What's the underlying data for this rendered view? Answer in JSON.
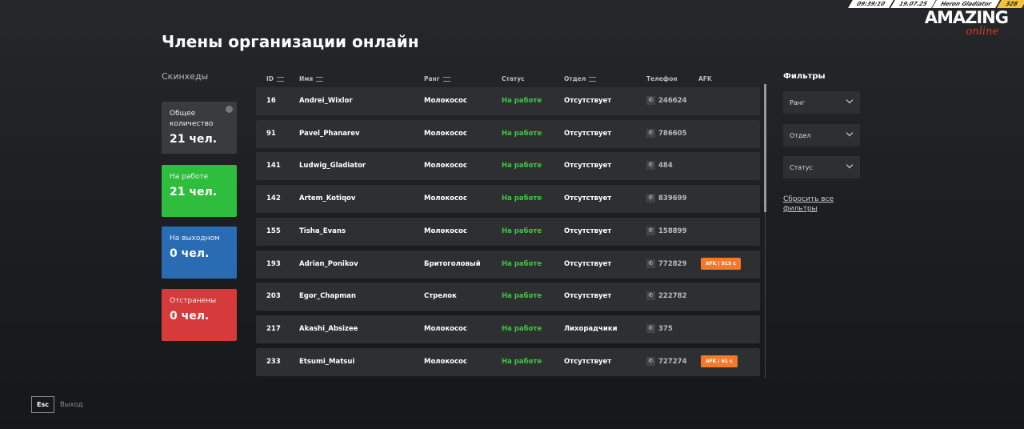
{
  "hud": {
    "time": "09:39:10",
    "date": "19.07.25",
    "player": "Heron Gladiator",
    "money": "328"
  },
  "logo": {
    "main": "AMAZING",
    "sub": "online"
  },
  "title": "Члены организации онлайн",
  "sidebar": {
    "heading": "Скинхеды",
    "cards": [
      {
        "label": "Общее количество",
        "value": "21 чел.",
        "color": "#3a3b3d"
      },
      {
        "label": "На работе",
        "value": "21 чел.",
        "color": "#2fbd3e"
      },
      {
        "label": "На выходном",
        "value": "0 чел.",
        "color": "#2a6cb3"
      },
      {
        "label": "Отстранены",
        "value": "0 чел.",
        "color": "#d63a3a"
      }
    ]
  },
  "table": {
    "headers": {
      "id": "ID",
      "name": "Имя",
      "rank": "Ранг",
      "status": "Статус",
      "dept": "Отдел",
      "phone": "Телефон",
      "afk": "AFK"
    },
    "rows": [
      {
        "id": "16",
        "name": "Andrei_Wixlor",
        "rank": "Молокосос",
        "status": "На работе",
        "dept": "Отсутствует",
        "phone": "246624",
        "afk": ""
      },
      {
        "id": "91",
        "name": "Pavel_Phanarev",
        "rank": "Молокосос",
        "status": "На работе",
        "dept": "Отсутствует",
        "phone": "786605",
        "afk": ""
      },
      {
        "id": "141",
        "name": "Ludwig_Gladiator",
        "rank": "Молокосос",
        "status": "На работе",
        "dept": "Отсутствует",
        "phone": "484",
        "afk": ""
      },
      {
        "id": "142",
        "name": "Artem_Kotiqov",
        "rank": "Молокосос",
        "status": "На работе",
        "dept": "Отсутствует",
        "phone": "839699",
        "afk": ""
      },
      {
        "id": "155",
        "name": "Tisha_Evans",
        "rank": "Молокосос",
        "status": "На работе",
        "dept": "Отсутствует",
        "phone": "158899",
        "afk": ""
      },
      {
        "id": "193",
        "name": "Adrian_Ponikov",
        "rank": "Бритоголовый",
        "status": "На работе",
        "dept": "Отсутствует",
        "phone": "772829",
        "afk": "AFK  |  915 с"
      },
      {
        "id": "203",
        "name": "Egor_Chapman",
        "rank": "Стрелок",
        "status": "На работе",
        "dept": "Отсутствует",
        "phone": "222782",
        "afk": ""
      },
      {
        "id": "217",
        "name": "Akashi_Absizee",
        "rank": "Молокосос",
        "status": "На работе",
        "dept": "Лихорадчики",
        "phone": "375",
        "afk": ""
      },
      {
        "id": "233",
        "name": "Etsumi_Matsui",
        "rank": "Молокосос",
        "status": "На работе",
        "dept": "Отсутствует",
        "phone": "727274",
        "afk": "AFK  |  61 с"
      }
    ]
  },
  "filters": {
    "title": "Фильтры",
    "rank": "Ранг",
    "dept": "Отдел",
    "status": "Статус",
    "reset": "Сбросить все фильтры"
  },
  "footer": {
    "key": "Esc",
    "label": "Выход"
  }
}
